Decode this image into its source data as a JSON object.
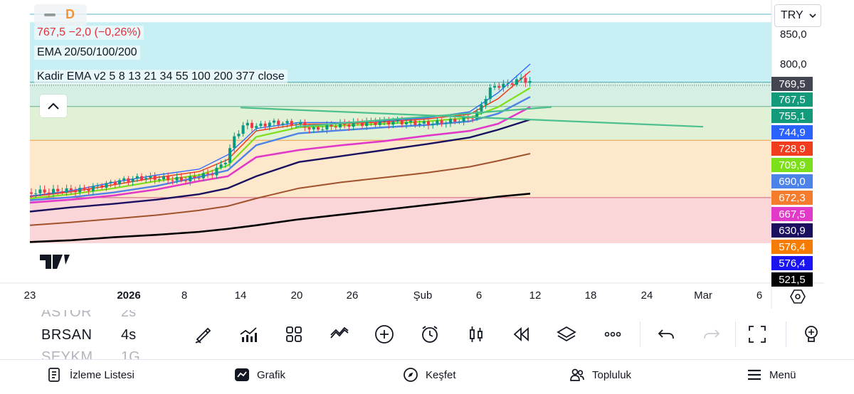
{
  "header": {
    "collapse_icon": "minus-icon",
    "interval_badge": "D",
    "price_line": "767,5  −2,0 (−0,26%)",
    "indicator_1": "EMA 20/50/100/200",
    "indicator_2": "Kadir EMA v2 5 8 13 21 34 55 100 200 377 close",
    "currency": "TRY"
  },
  "price_axis": {
    "ticks": [
      "850,0",
      "800,0"
    ],
    "price_boxes": [
      {
        "value": "769,5",
        "color": "#434651"
      },
      {
        "value": "767,5",
        "color": "#139a7a"
      },
      {
        "value": "755,1",
        "color": "#139a7a"
      },
      {
        "value": "744,9",
        "color": "#2962ff"
      },
      {
        "value": "728,9",
        "color": "#f23c1e"
      },
      {
        "value": "709,9",
        "color": "#7ddf1a"
      },
      {
        "value": "690,0",
        "color": "#4d82e8"
      },
      {
        "value": "672,3",
        "color": "#f57c2c"
      },
      {
        "value": "667,5",
        "color": "#e23ac8"
      },
      {
        "value": "630,9",
        "color": "#1a1060"
      },
      {
        "value": "576,4",
        "color": "#f57c00"
      },
      {
        "value": "576,4",
        "color": "#1a14f0"
      },
      {
        "value": "521,5",
        "color": "#000000"
      }
    ]
  },
  "time_axis": {
    "labels": [
      {
        "text": "23",
        "bold": false
      },
      {
        "text": "2026",
        "bold": true
      },
      {
        "text": "8",
        "bold": false
      },
      {
        "text": "14",
        "bold": false
      },
      {
        "text": "20",
        "bold": false
      },
      {
        "text": "26",
        "bold": false
      },
      {
        "text": "Şub",
        "bold": false
      },
      {
        "text": "6",
        "bold": false
      },
      {
        "text": "12",
        "bold": false
      },
      {
        "text": "18",
        "bold": false
      },
      {
        "text": "24",
        "bold": false
      },
      {
        "text": "Mar",
        "bold": false
      },
      {
        "text": "6",
        "bold": false
      }
    ]
  },
  "watchlist": [
    {
      "symbol": "ASTOR",
      "interval": "2s",
      "dim": true
    },
    {
      "symbol": "BRSAN",
      "interval": "4s",
      "dim": false
    },
    {
      "symbol": "SEYKM",
      "interval": "1G",
      "dim": true
    }
  ],
  "toolbar": {
    "tools": [
      "brush-icon",
      "indicators-icon",
      "layouts-icon",
      "compare-icon",
      "add-icon",
      "alert-icon",
      "candles-icon",
      "replay-icon",
      "layers-icon",
      "more-icon",
      "undo-icon",
      "redo-icon",
      "fullscreen-icon",
      "idea-icon"
    ]
  },
  "bottom_nav": {
    "items": [
      {
        "label": "İzleme Listesi",
        "icon": "watchlist-icon"
      },
      {
        "label": "Grafik",
        "icon": "chart-icon"
      },
      {
        "label": "Keşfet",
        "icon": "compass-icon"
      },
      {
        "label": "Topluluk",
        "icon": "community-icon"
      },
      {
        "label": "Menü",
        "icon": "menu-icon"
      }
    ]
  },
  "chart_data": {
    "type": "line",
    "title": "",
    "ylim": [
      500,
      870
    ],
    "zones": [
      {
        "from": 769.5,
        "to": 870,
        "color": "#c8f0f4"
      },
      {
        "from": 728.9,
        "to": 769.5,
        "color": "#d6efe4"
      },
      {
        "from": 672.3,
        "to": 728.9,
        "color": "#e0f1d6"
      },
      {
        "from": 576.4,
        "to": 672.3,
        "color": "#fde8cc"
      },
      {
        "from": 500,
        "to": 576.4,
        "color": "#fbd6d8"
      }
    ],
    "last_close": 767.5
  }
}
